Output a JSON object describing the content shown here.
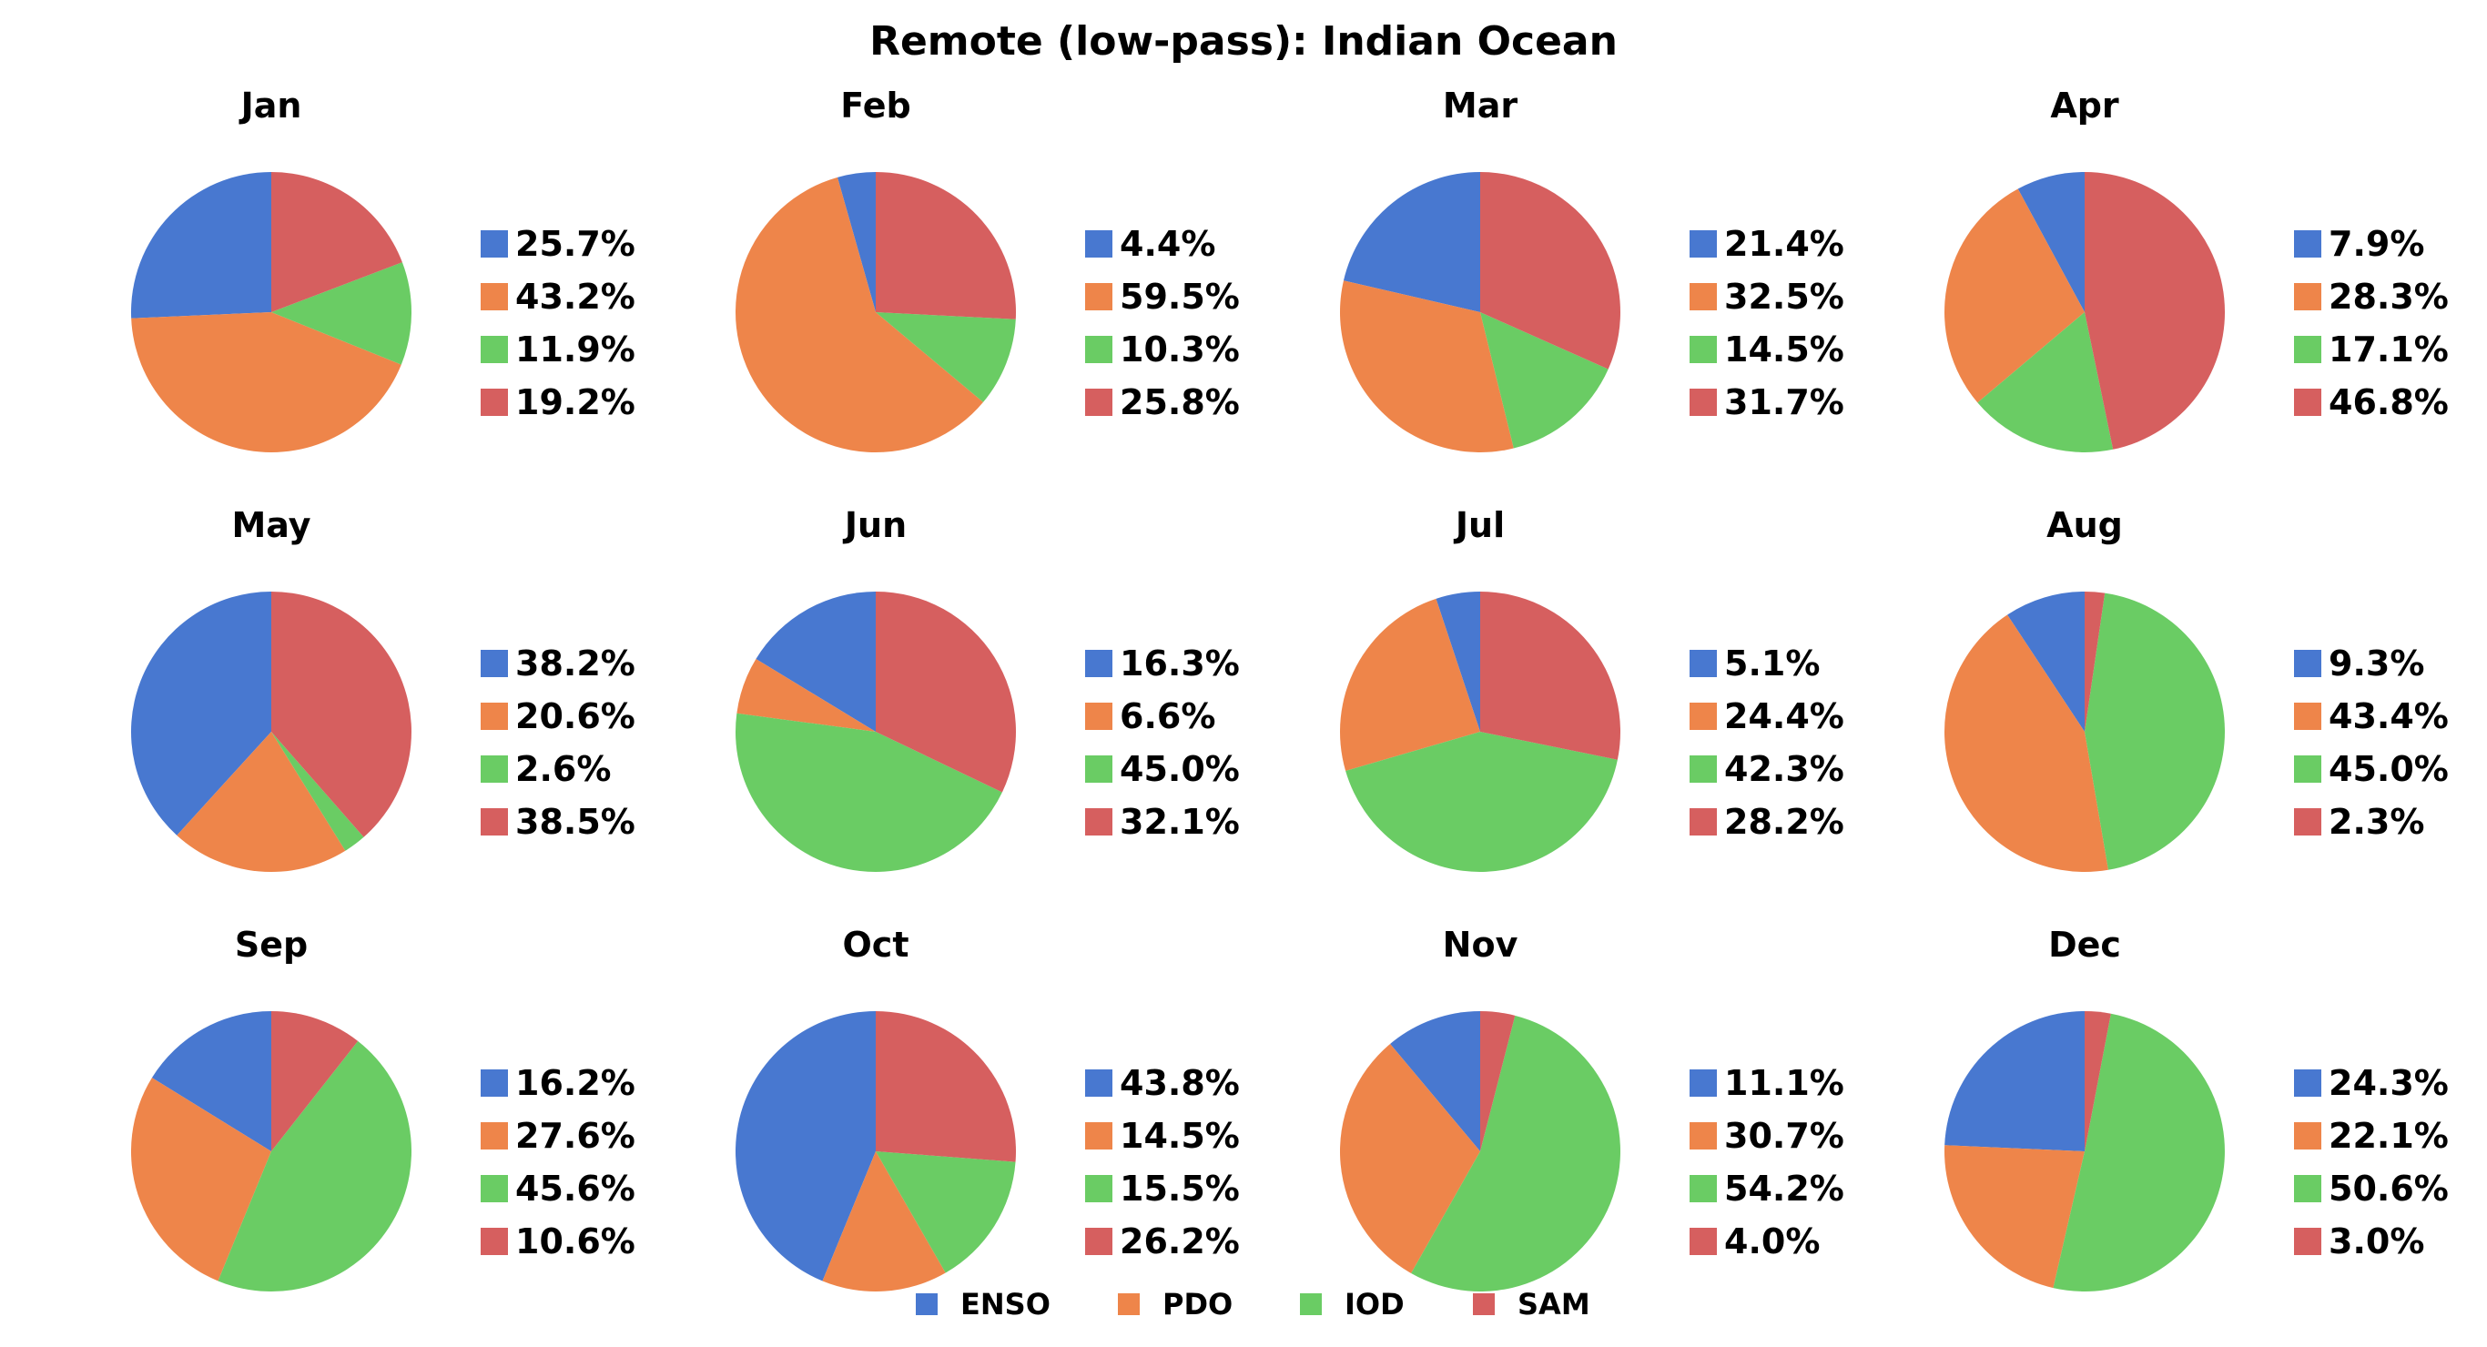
{
  "figure": {
    "title": "Remote (low-pass): Indian Ocean"
  },
  "colors": {
    "ENSO": "#4878d0",
    "PDO": "#ee854a",
    "IOD": "#6acc64",
    "SAM": "#d65f5f"
  },
  "legend": {
    "entries": [
      "ENSO",
      "PDO",
      "IOD",
      "SAM"
    ],
    "placement": "bottom-center"
  },
  "chart_data": [
    {
      "type": "pie",
      "title": "Jan",
      "categories": [
        "ENSO",
        "PDO",
        "IOD",
        "SAM"
      ],
      "values": [
        25.7,
        43.2,
        11.9,
        19.2
      ],
      "labels": [
        "25.7%",
        "43.2%",
        "11.9%",
        "19.2%"
      ]
    },
    {
      "type": "pie",
      "title": "Feb",
      "categories": [
        "ENSO",
        "PDO",
        "IOD",
        "SAM"
      ],
      "values": [
        4.4,
        59.5,
        10.3,
        25.8
      ],
      "labels": [
        "4.4%",
        "59.5%",
        "10.3%",
        "25.8%"
      ]
    },
    {
      "type": "pie",
      "title": "Mar",
      "categories": [
        "ENSO",
        "PDO",
        "IOD",
        "SAM"
      ],
      "values": [
        21.4,
        32.5,
        14.5,
        31.7
      ],
      "labels": [
        "21.4%",
        "32.5%",
        "14.5%",
        "31.7%"
      ]
    },
    {
      "type": "pie",
      "title": "Apr",
      "categories": [
        "ENSO",
        "PDO",
        "IOD",
        "SAM"
      ],
      "values": [
        7.9,
        28.3,
        17.1,
        46.8
      ],
      "labels": [
        "7.9%",
        "28.3%",
        "17.1%",
        "46.8%"
      ]
    },
    {
      "type": "pie",
      "title": "May",
      "categories": [
        "ENSO",
        "PDO",
        "IOD",
        "SAM"
      ],
      "values": [
        38.2,
        20.6,
        2.6,
        38.5
      ],
      "labels": [
        "38.2%",
        "20.6%",
        "2.6%",
        "38.5%"
      ]
    },
    {
      "type": "pie",
      "title": "Jun",
      "categories": [
        "ENSO",
        "PDO",
        "IOD",
        "SAM"
      ],
      "values": [
        16.3,
        6.6,
        45.0,
        32.1
      ],
      "labels": [
        "16.3%",
        "6.6%",
        "45.0%",
        "32.1%"
      ]
    },
    {
      "type": "pie",
      "title": "Jul",
      "categories": [
        "ENSO",
        "PDO",
        "IOD",
        "SAM"
      ],
      "values": [
        5.1,
        24.4,
        42.3,
        28.2
      ],
      "labels": [
        "5.1%",
        "24.4%",
        "42.3%",
        "28.2%"
      ]
    },
    {
      "type": "pie",
      "title": "Aug",
      "categories": [
        "ENSO",
        "PDO",
        "IOD",
        "SAM"
      ],
      "values": [
        9.3,
        43.4,
        45.0,
        2.3
      ],
      "labels": [
        "9.3%",
        "43.4%",
        "45.0%",
        "2.3%"
      ]
    },
    {
      "type": "pie",
      "title": "Sep",
      "categories": [
        "ENSO",
        "PDO",
        "IOD",
        "SAM"
      ],
      "values": [
        16.2,
        27.6,
        45.6,
        10.6
      ],
      "labels": [
        "16.2%",
        "27.6%",
        "45.6%",
        "10.6%"
      ]
    },
    {
      "type": "pie",
      "title": "Oct",
      "categories": [
        "ENSO",
        "PDO",
        "IOD",
        "SAM"
      ],
      "values": [
        43.8,
        14.5,
        15.5,
        26.2
      ],
      "labels": [
        "43.8%",
        "14.5%",
        "15.5%",
        "26.2%"
      ]
    },
    {
      "type": "pie",
      "title": "Nov",
      "categories": [
        "ENSO",
        "PDO",
        "IOD",
        "SAM"
      ],
      "values": [
        11.1,
        30.7,
        54.2,
        4.0
      ],
      "labels": [
        "11.1%",
        "30.7%",
        "54.2%",
        "4.0%"
      ]
    },
    {
      "type": "pie",
      "title": "Dec",
      "categories": [
        "ENSO",
        "PDO",
        "IOD",
        "SAM"
      ],
      "values": [
        24.3,
        22.1,
        50.6,
        3.0
      ],
      "labels": [
        "24.3%",
        "22.1%",
        "50.6%",
        "3.0%"
      ]
    }
  ]
}
